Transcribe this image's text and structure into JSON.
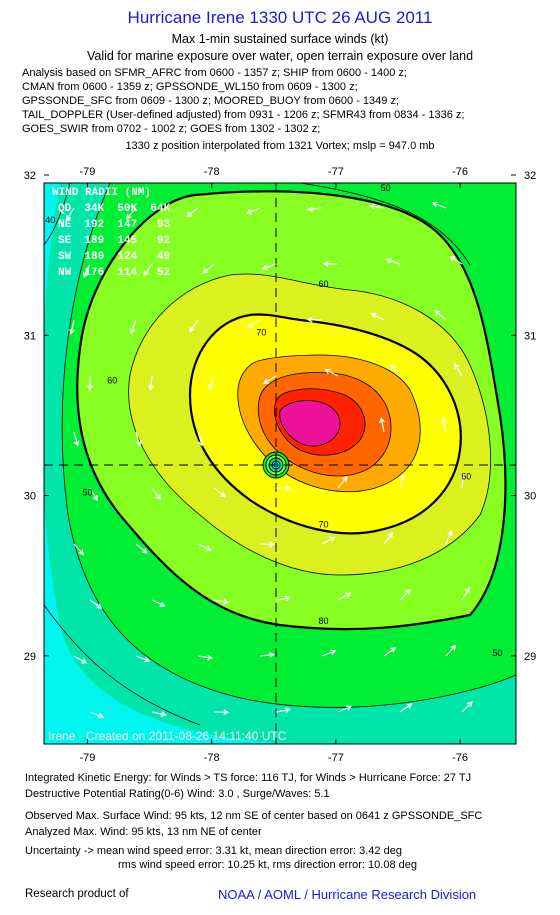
{
  "header": {
    "title": "Hurricane Irene 1330 UTC 26 AUG 2011",
    "subtitle1": "Max 1-min sustained surface winds (kt)",
    "subtitle2": "Valid for marine exposure over water, open terrain exposure over land"
  },
  "analysis_sources": [
    "Analysis based on SFMR_AFRC from 0600 - 1357 z; SHIP from 0600 - 1400 z;",
    "CMAN from 0600 - 1359 z; GPSSONDE_WL150 from 0609 - 1300 z;",
    "GPSSONDE_SFC from 0609 - 1300 z; MOORED_BUOY from 0600 - 1349 z;",
    "TAIL_DOPPLER (User-defined adjusted) from 0931 - 1206 z; SFMR43 from 0834 - 1336 z;",
    "GOES_SWIR from 0702 - 1002 z; GOES from 1302 - 1302 z;"
  ],
  "position_note": "1330 z position interpolated from 1321 Vortex; mslp = 947.0 mb",
  "wind_radii": {
    "title": "WIND RADII (NM)",
    "header": "QD  34K  50K  64K",
    "rows": [
      "NE  192  147   93",
      "SE  189  145   92",
      "SW  180  124   49",
      "NW  176  114   52"
    ]
  },
  "watermark": "Irene - Created on 2011-08-26 14:11:40 UTC",
  "footer": {
    "ike": "Integrated Kinetic Energy:  for Winds > TS force: 116 TJ,  for Winds > Hurricane Force: 27 TJ",
    "dpr": "Destructive Potential Rating(0-6)   Wind: 3.0 , Surge/Waves: 5.1",
    "obs_max": "Observed Max. Surface Wind: 95 kts, 12 nm SE of center based on 0641 z GPSSONDE_SFC",
    "analyzed_max": "Analyzed Max. Wind: 95 kts, 13 nm NE of center",
    "uncert1": "Uncertainty -> mean wind speed error: 3.31 kt,   mean direction error: 3.42 deg",
    "uncert2": "rms wind speed error: 10.25 kt,   rms direction error: 10.08 deg",
    "research": "Research product of",
    "org": "NOAA / AOML / Hurricane Research Division"
  },
  "chart_data": {
    "type": "heatmap",
    "title": "Hurricane Irene 1330 UTC 26 AUG 2011",
    "xlabel": "",
    "ylabel": "",
    "xlim": [
      -79.35,
      -75.55
    ],
    "ylim": [
      28.45,
      31.95
    ],
    "x_ticks": [
      -79,
      -78,
      -77,
      -76
    ],
    "y_ticks": [
      29,
      30,
      31,
      32
    ],
    "x_tick_labels": [
      "-79",
      "-78",
      "-77",
      "-76"
    ],
    "y_tick_labels": [
      "29",
      "30",
      "31",
      "32"
    ],
    "center": {
      "lon": -77.35,
      "lat": 30.42
    },
    "mslp_mb": 947.0,
    "contour_labels": [
      {
        "text": "50",
        "lon": -76.6,
        "lat": 31.9
      },
      {
        "text": "60",
        "lon": -77.1,
        "lat": 31.3
      },
      {
        "text": "70",
        "lon": -77.6,
        "lat": 31.0
      },
      {
        "text": "60",
        "lon": -78.8,
        "lat": 30.7
      },
      {
        "text": "50",
        "lon": -79.0,
        "lat": 30.0
      },
      {
        "text": "70",
        "lon": -77.1,
        "lat": 29.8
      },
      {
        "text": "80",
        "lon": -77.1,
        "lat": 29.2
      },
      {
        "text": "60",
        "lon": -75.95,
        "lat": 30.1
      },
      {
        "text": "50",
        "lon": -75.7,
        "lat": 29.0
      },
      {
        "text": "40",
        "lon": -79.3,
        "lat": 31.7
      }
    ],
    "contour_levels_kt": [
      40,
      50,
      60,
      70,
      80,
      90
    ],
    "colors": {
      "band_lt40": "#00f5ee",
      "band_40": "#00e6aa",
      "band_50": "#00ee33",
      "band_60": "#88ff22",
      "band_70": "#dcf020",
      "band_80": "#ffff00",
      "band_85": "#ffaa00",
      "band_90": "#ff6600",
      "band_95": "#ff2200",
      "band_max": "#ee1199"
    }
  }
}
